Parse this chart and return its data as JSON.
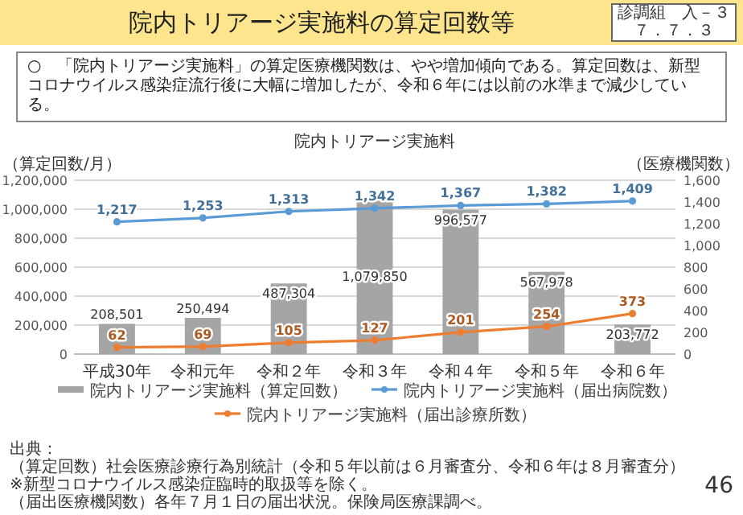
{
  "chart_data": {
    "type": "bar",
    "title": "院内トリアージ実施料の算定回数等",
    "subtitle": "○　「院内トリアージ実施料」の算定医療機関数は、やや増加傾向である。算定回数は、新型コロナウイルス感染症流行後に大幅に増加したが、令和６年には以前の水準まで減少している。",
    "annotations": [
      "院内トリアージ実施料",
      "診調組　入－３",
      "７．７．３",
      "出典：",
      "（算定回数）社会医療診療行為別統計（令和５年以前は６月審査分、令和６年は８月審査分）※新型コロナウイルス感染症臨時的取扱等を除く。",
      "（届出医療機関数）各年７月１日の届出状況。保険局医療課調べ。",
      "46"
    ],
    "ylabel": "（算定回数/月）",
    "y2label": "（医療機関数）",
    "categories": [
      "平成30年",
      "令和元年",
      "令和２年",
      "令和３年",
      "令和４年",
      "令和５年",
      "令和６年"
    ],
    "series": [
      {
        "name": "院内トリアージ実施料（算定回数）",
        "color": "#a5a5a5",
        "values": [
          208501,
          250494,
          487304,
          1079850,
          996577,
          567978,
          203772
        ],
        "value_labels": [
          "208,501",
          "250,494",
          "487,304",
          "1,079,850",
          "996,577",
          "567,978",
          "203,772"
        ]
      },
      {
        "name": "院内トリアージ実施料（届出病院数）",
        "type": "line",
        "axis": "y2",
        "color": "#5b9bd5",
        "values": [
          1217,
          1253,
          1313,
          1342,
          1367,
          1382,
          1409
        ],
        "value_labels": [
          "1,217",
          "1,253",
          "1,313",
          "1,342",
          "1,367",
          "1,382",
          "1,409"
        ]
      },
      {
        "name": "院内トリアージ実施料（届出診療所数）",
        "type": "line",
        "axis": "y2",
        "color": "#ed7d31",
        "values": [
          62,
          69,
          105,
          127,
          201,
          254,
          373
        ],
        "value_labels": [
          "62",
          "69",
          "105",
          "127",
          "201",
          "254",
          "373"
        ]
      }
    ],
    "ylim": [
      0,
      1200000
    ],
    "yticks": [
      0,
      {
        "value": 200000,
        "label": "200,000"
      },
      {
        "value": 400000,
        "label": "400,000"
      },
      {
        "value": 600000,
        "label": "600,000"
      },
      {
        "value": 800000,
        "label": "800,000"
      },
      {
        "value": 1000000,
        "label": "1,000,000"
      },
      {
        "value": 1200000,
        "label": "1,200,000"
      }
    ],
    "y2lim": [
      0,
      1600
    ],
    "y2ticks": [
      0,
      200,
      400,
      600,
      800,
      {
        "value": 1000,
        "label": "1,000"
      },
      {
        "value": 1200,
        "label": "1,200"
      },
      {
        "value": 1400,
        "label": "1,400"
      },
      {
        "value": 1600,
        "label": "1,600"
      }
    ],
    "grid": "y",
    "legend": "bottom",
    "marker": "circle",
    "line_style": "solid"
  }
}
